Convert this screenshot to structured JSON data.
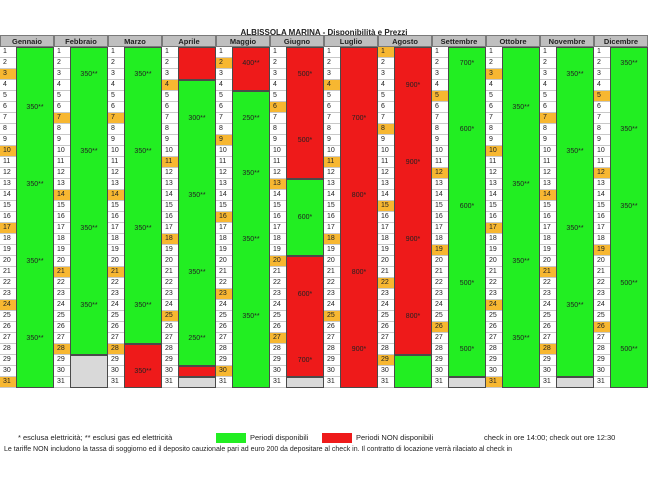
{
  "title": "ALBISSOLA MARINA - Disponibilità e Prezzi",
  "colors": {
    "free": "#22ee22",
    "busy": "#ee1a1a",
    "saturday": "#f7b731",
    "blank": "#d9d9d9",
    "header": "#bfbfbf"
  },
  "months": [
    {
      "name": "Gennaio",
      "days": 31,
      "saturdays": [
        3,
        10,
        17,
        24,
        31
      ],
      "periods": [
        {
          "start": 1,
          "end": 31,
          "status": "free"
        }
      ],
      "prices": [
        {
          "day": 6,
          "text": "350**"
        },
        {
          "day": 13,
          "text": "350**"
        },
        {
          "day": 20,
          "text": "350**"
        },
        {
          "day": 27,
          "text": "350**"
        }
      ]
    },
    {
      "name": "Febbraio",
      "days": 28,
      "saturdays": [
        7,
        14,
        21,
        28
      ],
      "periods": [
        {
          "start": 1,
          "end": 28,
          "status": "free"
        },
        {
          "start": 29,
          "end": 31,
          "status": "grey"
        }
      ],
      "prices": [
        {
          "day": 3,
          "text": "350**"
        },
        {
          "day": 10,
          "text": "350**"
        },
        {
          "day": 17,
          "text": "350**"
        },
        {
          "day": 24,
          "text": "350**"
        }
      ]
    },
    {
      "name": "Marzo",
      "days": 31,
      "saturdays": [
        7,
        14,
        21,
        28
      ],
      "periods": [
        {
          "start": 1,
          "end": 27,
          "status": "free"
        },
        {
          "start": 28,
          "end": 31,
          "status": "busy"
        }
      ],
      "prices": [
        {
          "day": 3,
          "text": "350**"
        },
        {
          "day": 10,
          "text": "350**"
        },
        {
          "day": 17,
          "text": "350**"
        },
        {
          "day": 24,
          "text": "350**"
        },
        {
          "day": 30,
          "text": "350**"
        }
      ]
    },
    {
      "name": "Aprile",
      "days": 30,
      "saturdays": [
        4,
        11,
        18,
        25
      ],
      "periods": [
        {
          "start": 1,
          "end": 3,
          "status": "busy"
        },
        {
          "start": 4,
          "end": 29,
          "status": "free"
        },
        {
          "start": 30,
          "end": 30,
          "status": "busy"
        },
        {
          "start": 31,
          "end": 31,
          "status": "grey"
        }
      ],
      "prices": [
        {
          "day": 7,
          "text": "300**"
        },
        {
          "day": 14,
          "text": "350**"
        },
        {
          "day": 21,
          "text": "350**"
        },
        {
          "day": 27,
          "text": "250**"
        }
      ]
    },
    {
      "name": "Maggio",
      "days": 31,
      "saturdays": [
        2,
        9,
        16,
        23,
        30
      ],
      "periods": [
        {
          "start": 1,
          "end": 4,
          "status": "busy"
        },
        {
          "start": 5,
          "end": 31,
          "status": "free"
        }
      ],
      "prices": [
        {
          "day": 2,
          "text": "400**"
        },
        {
          "day": 7,
          "text": "250**"
        },
        {
          "day": 12,
          "text": "350**"
        },
        {
          "day": 18,
          "text": "350**"
        },
        {
          "day": 25,
          "text": "350**"
        }
      ]
    },
    {
      "name": "Giugno",
      "days": 30,
      "saturdays": [
        6,
        13,
        20,
        27
      ],
      "periods": [
        {
          "start": 1,
          "end": 12,
          "status": "busy"
        },
        {
          "start": 13,
          "end": 19,
          "status": "free"
        },
        {
          "start": 20,
          "end": 30,
          "status": "busy"
        },
        {
          "start": 31,
          "end": 31,
          "status": "grey"
        }
      ],
      "prices": [
        {
          "day": 3,
          "text": "500*"
        },
        {
          "day": 9,
          "text": "500*"
        },
        {
          "day": 16,
          "text": "600*"
        },
        {
          "day": 23,
          "text": "600*"
        },
        {
          "day": 29,
          "text": "700*"
        }
      ]
    },
    {
      "name": "Luglio",
      "days": 31,
      "saturdays": [
        4,
        11,
        18,
        25
      ],
      "periods": [
        {
          "start": 1,
          "end": 31,
          "status": "busy"
        }
      ],
      "prices": [
        {
          "day": 7,
          "text": "700*"
        },
        {
          "day": 14,
          "text": "800*"
        },
        {
          "day": 21,
          "text": "800*"
        },
        {
          "day": 28,
          "text": "900*"
        }
      ]
    },
    {
      "name": "Agosto",
      "days": 31,
      "saturdays": [
        1,
        8,
        15,
        22,
        29
      ],
      "periods": [
        {
          "start": 1,
          "end": 28,
          "status": "busy"
        },
        {
          "start": 29,
          "end": 31,
          "status": "free"
        }
      ],
      "prices": [
        {
          "day": 4,
          "text": "900*"
        },
        {
          "day": 11,
          "text": "900*"
        },
        {
          "day": 18,
          "text": "900*"
        },
        {
          "day": 25,
          "text": "800*"
        }
      ]
    },
    {
      "name": "Settembre",
      "days": 30,
      "saturdays": [
        5,
        12,
        19,
        26
      ],
      "periods": [
        {
          "start": 1,
          "end": 30,
          "status": "free"
        },
        {
          "start": 31,
          "end": 31,
          "status": "grey"
        }
      ],
      "prices": [
        {
          "day": 2,
          "text": "700*"
        },
        {
          "day": 8,
          "text": "600*"
        },
        {
          "day": 15,
          "text": "600*"
        },
        {
          "day": 22,
          "text": "500*"
        },
        {
          "day": 28,
          "text": "500*"
        }
      ]
    },
    {
      "name": "Ottobre",
      "days": 31,
      "saturdays": [
        3,
        10,
        17,
        24,
        31
      ],
      "periods": [
        {
          "start": 1,
          "end": 31,
          "status": "free"
        }
      ],
      "prices": [
        {
          "day": 6,
          "text": "350**"
        },
        {
          "day": 13,
          "text": "350**"
        },
        {
          "day": 20,
          "text": "350**"
        },
        {
          "day": 27,
          "text": "350**"
        }
      ]
    },
    {
      "name": "Novembre",
      "days": 30,
      "saturdays": [
        7,
        14,
        21,
        28
      ],
      "periods": [
        {
          "start": 1,
          "end": 30,
          "status": "free"
        },
        {
          "start": 31,
          "end": 31,
          "status": "grey"
        }
      ],
      "prices": [
        {
          "day": 3,
          "text": "350**"
        },
        {
          "day": 10,
          "text": "350**"
        },
        {
          "day": 17,
          "text": "350**"
        },
        {
          "day": 24,
          "text": "350**"
        }
      ]
    },
    {
      "name": "Dicembre",
      "days": 31,
      "saturdays": [
        5,
        12,
        19,
        26
      ],
      "periods": [
        {
          "start": 1,
          "end": 31,
          "status": "free"
        }
      ],
      "prices": [
        {
          "day": 2,
          "text": "350**"
        },
        {
          "day": 8,
          "text": "350**"
        },
        {
          "day": 15,
          "text": "350**"
        },
        {
          "day": 22,
          "text": "500**"
        },
        {
          "day": 28,
          "text": "500**"
        }
      ]
    }
  ],
  "legend": {
    "note": "* esclusa elettricità; ** esclusi gas ed elettricità",
    "free_label": "Periodi disponibili",
    "busy_label": "Periodi NON disponibili",
    "checkin": "check in ore 14:00; check out ore 12:30",
    "footer": "Le tariffe NON includono la tassa di soggiorno ed il deposito cauzionale pari ad euro 200 da depositare al check in. Il contratto di locazione verrà rilaciato al check in"
  }
}
